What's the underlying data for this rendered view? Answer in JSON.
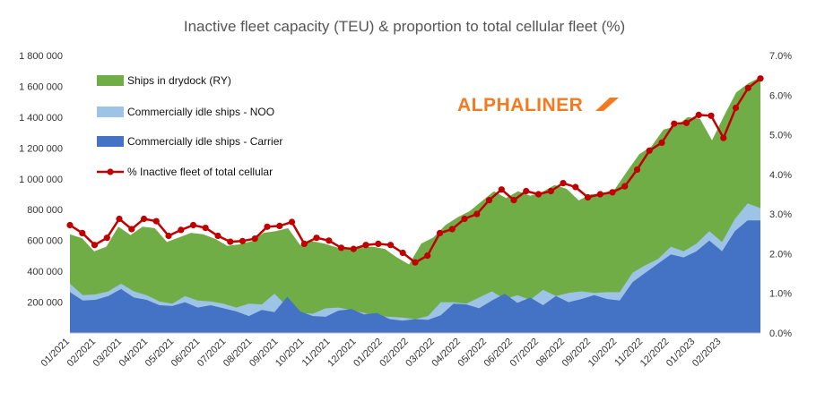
{
  "colors": {
    "drydock": "#70ad47",
    "noo": "#9dc3e6",
    "carrier": "#4472c4",
    "line": "#c00000",
    "brand": "#f47a20"
  },
  "brand": {
    "text": "ALPHALINER"
  },
  "chart_data": {
    "type": "area",
    "title": "Inactive fleet capacity (TEU) & proportion to total cellular fleet (%)",
    "y_left": {
      "min": 0,
      "max": 1800000,
      "ticks": [
        "200 000",
        "400 000",
        "600 000",
        "800 000",
        "1 000 000",
        "1 200 000",
        "1 400 000",
        "1 600 000",
        "1 800 000"
      ]
    },
    "y_right": {
      "min": 0,
      "max": 7,
      "ticks": [
        "0.0%",
        "1.0%",
        "2.0%",
        "3.0%",
        "4.0%",
        "5.0%",
        "6.0%",
        "7.0%"
      ]
    },
    "x_ticks": [
      "01/2021",
      "02/2021",
      "03/2021",
      "04/2021",
      "05/2021",
      "06/2021",
      "07/2021",
      "08/2021",
      "09/2021",
      "10/2021",
      "11/2021",
      "12/2021",
      "01/2022",
      "02/2022",
      "03/2022",
      "04/2022",
      "05/2022",
      "06/2022",
      "07/2022",
      "08/2022",
      "09/2022",
      "10/2022",
      "11/2022",
      "12/2022",
      "01/2023",
      "02/2023"
    ],
    "x_range": [
      1,
      27.5
    ],
    "legend_position": "top-left",
    "series": [
      {
        "name": "Ships in drydock (RY)",
        "kind": "area",
        "values": [
          640000,
          615000,
          530000,
          560000,
          690000,
          635000,
          690000,
          680000,
          590000,
          620000,
          650000,
          640000,
          610000,
          565000,
          575000,
          595000,
          650000,
          660000,
          680000,
          570000,
          595000,
          580000,
          555000,
          550000,
          555000,
          560000,
          545000,
          490000,
          445000,
          580000,
          620000,
          700000,
          750000,
          790000,
          855000,
          920000,
          875000,
          920000,
          890000,
          915000,
          960000,
          935000,
          860000,
          900000,
          905000,
          935000,
          1050000,
          1160000,
          1210000,
          1320000,
          1340000,
          1400000,
          1390000,
          1250000,
          1410000,
          1560000,
          1620000,
          1660000
        ]
      },
      {
        "name": "Commercially idle ships - NOO",
        "kind": "area",
        "values": [
          320000,
          245000,
          250000,
          270000,
          320000,
          270000,
          245000,
          205000,
          190000,
          240000,
          210000,
          205000,
          190000,
          165000,
          190000,
          185000,
          255000,
          170000,
          130000,
          125000,
          160000,
          165000,
          150000,
          130000,
          110000,
          105000,
          100000,
          90000,
          110000,
          200000,
          200000,
          190000,
          230000,
          270000,
          220000,
          245000,
          215000,
          280000,
          240000,
          260000,
          270000,
          260000,
          265000,
          265000,
          390000,
          440000,
          480000,
          560000,
          530000,
          580000,
          660000,
          590000,
          740000,
          840000,
          810000
        ]
      },
      {
        "name": "Commercially idle ships - Carrier",
        "kind": "area",
        "values": [
          265000,
          210000,
          215000,
          240000,
          285000,
          230000,
          215000,
          180000,
          175000,
          200000,
          165000,
          180000,
          160000,
          140000,
          110000,
          150000,
          135000,
          235000,
          140000,
          110000,
          105000,
          145000,
          155000,
          120000,
          130000,
          90000,
          80000,
          90000,
          85000,
          115000,
          190000,
          185000,
          160000,
          210000,
          255000,
          195000,
          230000,
          180000,
          240000,
          200000,
          220000,
          245000,
          220000,
          210000,
          330000,
          390000,
          450000,
          510000,
          490000,
          530000,
          600000,
          530000,
          660000,
          730000,
          730000
        ]
      },
      {
        "name": "% Inactive fleet of total cellular",
        "kind": "line",
        "axis": "right",
        "values": [
          2.72,
          2.52,
          2.22,
          2.4,
          2.88,
          2.62,
          2.88,
          2.82,
          2.45,
          2.6,
          2.72,
          2.65,
          2.45,
          2.3,
          2.32,
          2.38,
          2.68,
          2.7,
          2.8,
          2.25,
          2.4,
          2.33,
          2.15,
          2.12,
          2.22,
          2.25,
          2.22,
          2.02,
          1.78,
          1.95,
          2.52,
          2.62,
          2.88,
          3.0,
          3.35,
          3.62,
          3.35,
          3.58,
          3.5,
          3.58,
          3.78,
          3.68,
          3.42,
          3.5,
          3.55,
          3.7,
          4.12,
          4.6,
          4.8,
          5.28,
          5.3,
          5.5,
          5.48,
          4.92,
          5.68,
          6.18,
          6.42
        ]
      }
    ]
  }
}
